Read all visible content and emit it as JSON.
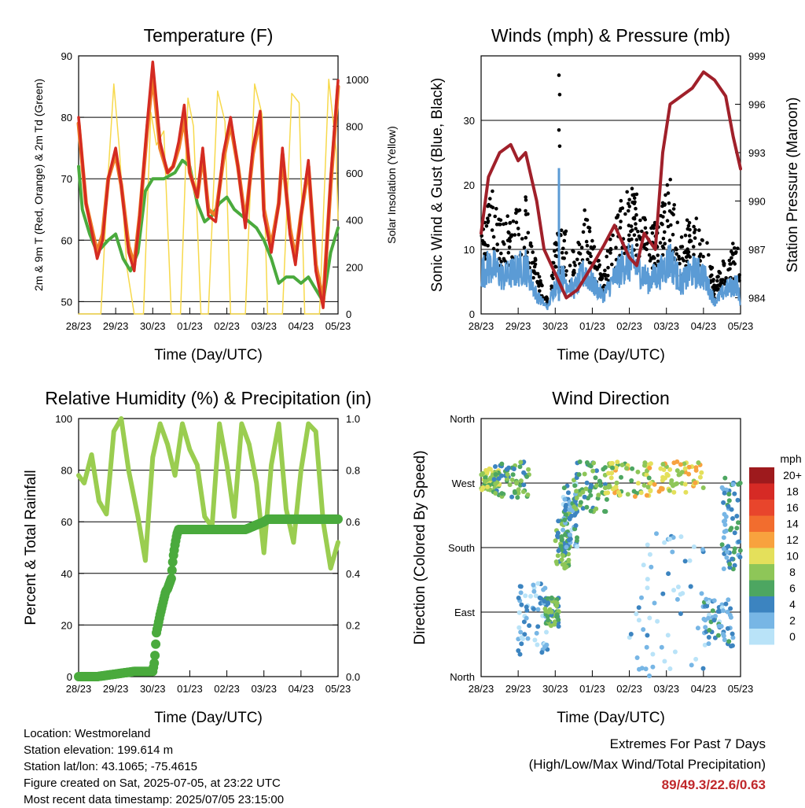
{
  "day_ticks": [
    "28/23",
    "29/23",
    "30/23",
    "01/23",
    "02/23",
    "03/23",
    "04/23",
    "05/23"
  ],
  "info": {
    "location": "Location: Westmoreland",
    "elevation": "Station elevation: 199.614 m",
    "latlon": "Station lat/lon: 43.1065; -75.4615",
    "created": "Figure created on Sat, 2025-07-05, at 23:22 UTC",
    "recent": "Most recent data timestamp: 2025/07/05 23:15:00"
  },
  "extremes": {
    "title": "Extremes For Past 7 Days",
    "subtitle": "(High/Low/Max Wind/Total Precipitation)",
    "values": "89/49.3/22.6/0.63"
  },
  "chart_data": [
    {
      "type": "line",
      "title": "Temperature (F)",
      "xlabel": "Time (Day/UTC)",
      "ylabel": "2m & 9m T (Red, Orange) & 2m Td (Green)",
      "ylabel_right": "Solar Insolation (Yellow)",
      "ylim": [
        48,
        90
      ],
      "yticks": [
        50,
        60,
        70,
        80,
        90
      ],
      "ylim_right": [
        0,
        1100
      ],
      "yticks_right": [
        0,
        200,
        400,
        600,
        800,
        1000
      ],
      "x_units": "days since 28/23",
      "series": [
        {
          "color": "#d42b22",
          "x": [
            0,
            0.2,
            0.5,
            0.65,
            0.8,
            1.0,
            1.15,
            1.35,
            1.5,
            1.65,
            1.85,
            2.0,
            2.2,
            2.4,
            2.55,
            2.7,
            2.85,
            3.0,
            3.2,
            3.35,
            3.5,
            3.7,
            3.9,
            4.1,
            4.3,
            4.5,
            4.7,
            4.9,
            5.0,
            5.2,
            5.4,
            5.5,
            5.7,
            5.85,
            6.0,
            6.2,
            6.4,
            6.6,
            6.8,
            7.0
          ],
          "y": [
            80,
            66,
            57,
            60,
            70,
            75,
            69,
            58,
            55,
            64,
            79,
            89,
            76,
            71,
            72,
            76,
            82,
            71,
            67,
            75,
            64,
            63,
            74,
            80,
            72,
            62,
            75,
            81,
            64,
            58,
            66,
            75,
            61,
            56,
            64,
            73,
            55,
            49,
            70,
            86
          ]
        },
        {
          "color": "#ef7d28",
          "x": [
            0,
            0.2,
            0.5,
            0.65,
            0.8,
            1.0,
            1.15,
            1.35,
            1.5,
            1.65,
            1.85,
            2.0,
            2.2,
            2.4,
            2.55,
            2.7,
            2.85,
            3.0,
            3.2,
            3.35,
            3.5,
            3.7,
            3.9,
            4.1,
            4.3,
            4.5,
            4.7,
            4.9,
            5.0,
            5.2,
            5.4,
            5.5,
            5.7,
            5.85,
            6.0,
            6.2,
            6.4,
            6.6,
            6.8,
            7.0
          ],
          "y": [
            79,
            66,
            58,
            61,
            70,
            74,
            69,
            59,
            56,
            64,
            78,
            87,
            75,
            71,
            72,
            75,
            80,
            71,
            67,
            74,
            65,
            64,
            73,
            79,
            72,
            63,
            74,
            80,
            65,
            59,
            66,
            74,
            62,
            57,
            64,
            72,
            56,
            50,
            69,
            85
          ]
        },
        {
          "color": "#4aaa3d",
          "x": [
            0,
            0.1,
            0.3,
            0.5,
            0.8,
            1.0,
            1.2,
            1.4,
            1.6,
            1.8,
            2.0,
            2.3,
            2.6,
            2.8,
            3.0,
            3.2,
            3.4,
            3.6,
            3.8,
            4.0,
            4.2,
            4.4,
            4.6,
            4.8,
            5.0,
            5.2,
            5.4,
            5.6,
            5.8,
            6.0,
            6.2,
            6.4,
            6.6,
            6.8,
            7.0
          ],
          "y": [
            72,
            65,
            61,
            58,
            60,
            61,
            57,
            55,
            58,
            68,
            70,
            70,
            71,
            73,
            72,
            66,
            63,
            64,
            66,
            67,
            65,
            64,
            63,
            62,
            60,
            57,
            53,
            54,
            54,
            53,
            54,
            52,
            50,
            58,
            62
          ]
        },
        {
          "color": "#f7d94c",
          "axis": "right",
          "x": [
            0,
            0.6,
            0.8,
            0.95,
            1.1,
            1.3,
            1.5,
            1.75,
            1.95,
            2.1,
            2.3,
            2.5,
            2.75,
            2.95,
            3.1,
            3.3,
            3.5,
            3.75,
            3.95,
            4.1,
            4.3,
            4.5,
            4.75,
            4.95,
            5.1,
            5.3,
            5.5,
            5.75,
            5.95,
            6.1,
            6.3,
            6.5,
            6.75,
            6.95,
            7.0
          ],
          "y": [
            0,
            0,
            600,
            980,
            700,
            200,
            0,
            0,
            860,
            720,
            780,
            0,
            0,
            920,
            800,
            0,
            0,
            950,
            820,
            0,
            0,
            0,
            980,
            850,
            0,
            0,
            0,
            940,
            900,
            0,
            0,
            0,
            1000,
            700,
            400
          ]
        }
      ]
    },
    {
      "type": "scatter",
      "title": "Winds (mph) & Pressure (mb)",
      "xlabel": "Time (Day/UTC)",
      "ylabel": "Sonic Wind & Gust (Blue, Black)",
      "ylabel_right": "Station Pressure (Maroon)",
      "ylim": [
        0,
        40
      ],
      "yticks": [
        0,
        10,
        20,
        30
      ],
      "ylim_right": [
        983,
        999
      ],
      "yticks_right": [
        984,
        987,
        990,
        993,
        996,
        999
      ],
      "pressure": {
        "color": "#a0202a",
        "x": [
          0,
          0.2,
          0.5,
          0.8,
          1.0,
          1.2,
          1.5,
          1.7,
          2.0,
          2.3,
          2.6,
          3.0,
          3.3,
          3.6,
          3.8,
          4.0,
          4.2,
          4.4,
          4.7,
          4.9,
          5.1,
          5.4,
          5.7,
          6.0,
          6.3,
          6.6,
          6.8,
          7.0
        ],
        "y": [
          988,
          991.5,
          993,
          993.5,
          992.5,
          993,
          990,
          987,
          985.5,
          984,
          984.5,
          986,
          987.2,
          988.5,
          987.5,
          986.5,
          986,
          988,
          987,
          993,
          996,
          996.5,
          997,
          998,
          997.5,
          996.5,
          994,
          992
        ]
      },
      "gust": {
        "color": "#000000",
        "profile_x": [
          0,
          0.3,
          0.6,
          0.9,
          1.2,
          1.5,
          1.8,
          2.0,
          2.2,
          2.5,
          2.8,
          3.0,
          3.3,
          3.6,
          3.9,
          4.2,
          4.5,
          4.8,
          5.1,
          5.4,
          5.7,
          6.0,
          6.3,
          6.6,
          6.9,
          7.0
        ],
        "profile_y": [
          14,
          16,
          12,
          14,
          16,
          6,
          2,
          10,
          12,
          8,
          14,
          10,
          6,
          12,
          17,
          16,
          11,
          13,
          18,
          10,
          14,
          13,
          4,
          8,
          10,
          4
        ],
        "outliers": [
          [
            2.1,
            37
          ],
          [
            2.12,
            34
          ],
          [
            2.1,
            28.5
          ],
          [
            2.12,
            26
          ]
        ]
      },
      "wind": {
        "color": "#5b9bd5",
        "peak": 22.6
      }
    },
    {
      "type": "line",
      "title": "Relative Humidity (%) & Precipitation (in)",
      "xlabel": "Time (Day/UTC)",
      "ylabel": "Percent & Total Rainfall",
      "ylim": [
        0,
        100
      ],
      "yticks": [
        0,
        20,
        40,
        60,
        80,
        100
      ],
      "ylim_right": [
        0,
        1.0
      ],
      "yticks_right": [
        "0.0",
        "0.2",
        "0.4",
        "0.6",
        "0.8",
        "1.0"
      ],
      "series": [
        {
          "name": "rh",
          "color": "#9acd50",
          "x": [
            0,
            0.15,
            0.35,
            0.55,
            0.75,
            0.95,
            1.15,
            1.35,
            1.6,
            1.8,
            2.0,
            2.2,
            2.4,
            2.6,
            2.8,
            3.0,
            3.2,
            3.4,
            3.6,
            3.8,
            4.0,
            4.2,
            4.4,
            4.6,
            4.8,
            5.0,
            5.2,
            5.4,
            5.6,
            5.8,
            6.0,
            6.2,
            6.4,
            6.6,
            6.8,
            7.0
          ],
          "y": [
            78,
            75,
            86,
            68,
            63,
            95,
            100,
            80,
            62,
            45,
            85,
            98,
            90,
            78,
            98,
            88,
            82,
            62,
            58,
            98,
            82,
            62,
            98,
            90,
            75,
            48,
            82,
            98,
            65,
            52,
            80,
            98,
            95,
            60,
            42,
            52
          ]
        },
        {
          "name": "precip",
          "color": "#4aaa3d",
          "axis": "right",
          "x": [
            0,
            0.5,
            1.0,
            1.5,
            2.0,
            2.05,
            2.1,
            2.2,
            2.3,
            2.35,
            2.4,
            2.5,
            2.55,
            2.6,
            2.65,
            2.7,
            3.5,
            4.5,
            5.0,
            5.1,
            5.5,
            6.0,
            6.5,
            7.0
          ],
          "y": [
            0,
            0,
            0.01,
            0.02,
            0.02,
            0.06,
            0.17,
            0.24,
            0.3,
            0.33,
            0.34,
            0.38,
            0.46,
            0.51,
            0.55,
            0.57,
            0.57,
            0.57,
            0.6,
            0.61,
            0.61,
            0.61,
            0.61,
            0.61
          ]
        }
      ]
    },
    {
      "type": "scatter",
      "title": "Wind Direction",
      "xlabel": "Time (Day/UTC)",
      "ylabel": "Direction (Colored By Speed)",
      "yticks": [
        "North",
        "East",
        "South",
        "West",
        "North"
      ],
      "legend": {
        "title": "mph",
        "labels": [
          "20+",
          "18",
          "16",
          "14",
          "12",
          "10",
          "8",
          "6",
          "4",
          "2",
          "0"
        ],
        "colors": [
          "#9e1a1d",
          "#d62a25",
          "#e8452c",
          "#f26d2e",
          "#f8a23e",
          "#e4e05b",
          "#8ec658",
          "#4da661",
          "#3c84c0",
          "#77b6e5",
          "#b9e3f8"
        ]
      },
      "clusters": [
        {
          "x": [
            0.0,
            0.5
          ],
          "dir": [
            260,
            290
          ],
          "speed": 8
        },
        {
          "x": [
            0.3,
            1.3
          ],
          "dir": [
            250,
            300
          ],
          "speed": 6
        },
        {
          "x": [
            1.0,
            1.8
          ],
          "dir": [
            30,
            130
          ],
          "speed": 2
        },
        {
          "x": [
            1.7,
            2.1
          ],
          "dir": [
            70,
            110
          ],
          "speed": 6
        },
        {
          "x": [
            2.0,
            2.4
          ],
          "dir": [
            150,
            230
          ],
          "speed": 6
        },
        {
          "x": [
            2.2,
            2.6
          ],
          "dir": [
            180,
            270
          ],
          "speed": 3
        },
        {
          "x": [
            2.5,
            3.4
          ],
          "dir": [
            230,
            300
          ],
          "speed": 6
        },
        {
          "x": [
            3.3,
            4.6
          ],
          "dir": [
            250,
            300
          ],
          "speed": 9
        },
        {
          "x": [
            4.5,
            6.0
          ],
          "dir": [
            255,
            300
          ],
          "speed": 10
        },
        {
          "x": [
            4.0,
            6.0
          ],
          "dir": [
            0,
            200
          ],
          "speed": 1
        },
        {
          "x": [
            6.0,
            6.8
          ],
          "dir": [
            40,
            110
          ],
          "speed": 3
        },
        {
          "x": [
            6.5,
            7.0
          ],
          "dir": [
            150,
            280
          ],
          "speed": 4
        }
      ]
    }
  ]
}
